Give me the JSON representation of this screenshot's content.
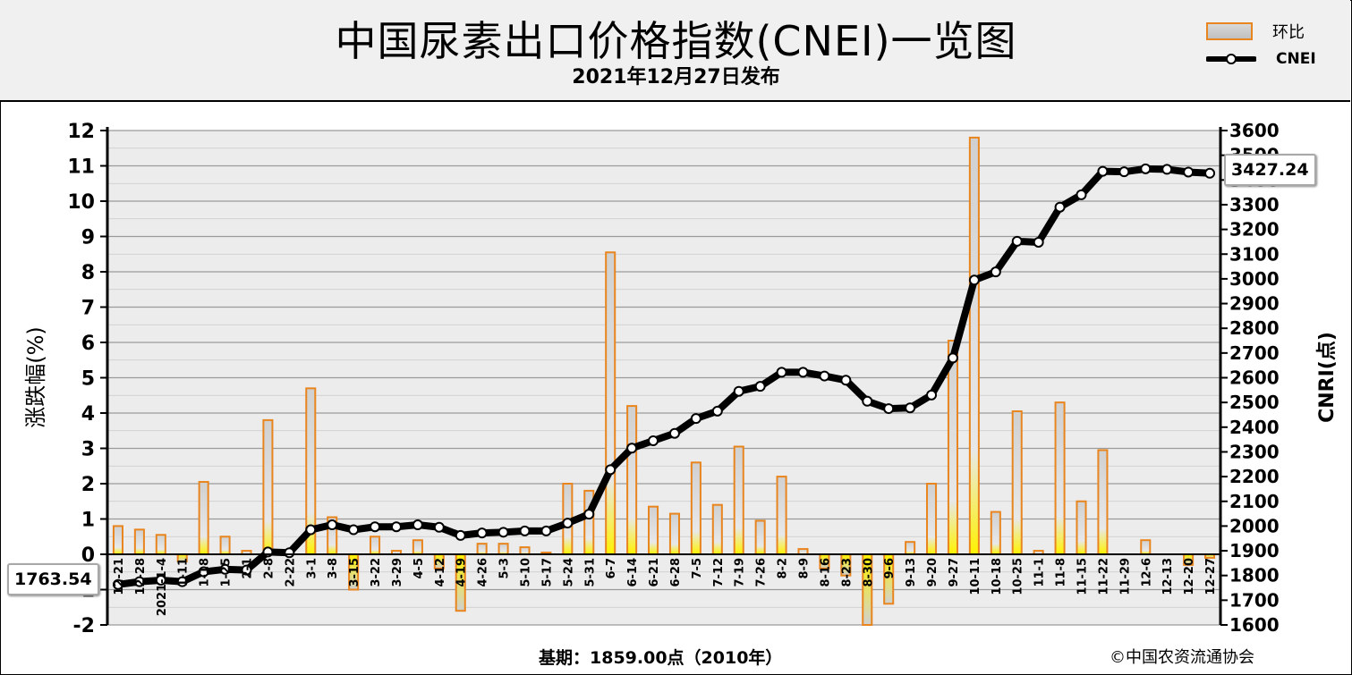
{
  "title": "中国尿素出口价格指数(CNEI)一览图",
  "subtitle": "2021年12月27日发布",
  "legend": {
    "bar_label": "环比",
    "line_label": "CNEI"
  },
  "footer": {
    "base_text": "基期：1859.00点（2010年）",
    "copyright": "©中国农资流通协会"
  },
  "callouts": {
    "start_value": "1763.54",
    "end_value": "3427.24"
  },
  "colors": {
    "bar_border": "#e8851e",
    "bar_fill_top": "#d8d8d8",
    "bar_fill_bottom": "#ffe600",
    "line": "#000000",
    "marker_fill": "#ffffff",
    "plot_bg": "#ececec",
    "grid": "#b8b8b8"
  },
  "chart_data": {
    "type": "bar",
    "combo": "bar + line (dual axis)",
    "ylabel_left": "涨跌幅(%)",
    "ylabel_right": "CNRI(点)",
    "ylim_left": [
      -2,
      12
    ],
    "ylim_right": [
      1600,
      3600
    ],
    "yticks_left": [
      -2,
      -1,
      0,
      1,
      2,
      3,
      4,
      5,
      6,
      7,
      8,
      9,
      10,
      11,
      12
    ],
    "yticks_right": [
      1600,
      1700,
      1800,
      1900,
      2000,
      2100,
      2200,
      2300,
      2400,
      2500,
      2600,
      2700,
      2800,
      2900,
      3000,
      3100,
      3200,
      3300,
      3400,
      3500,
      3600
    ],
    "grid": true,
    "legend_position": "top-right",
    "categories": [
      "12-21",
      "12-28",
      "2021-1-4",
      "1-11",
      "1-18",
      "1-25",
      "2-1",
      "2-8",
      "2-22",
      "3-1",
      "3-8",
      "3-15",
      "3-22",
      "3-29",
      "4-5",
      "4-12",
      "4-19",
      "4-26",
      "5-3",
      "5-10",
      "5-17",
      "5-24",
      "5-31",
      "6-7",
      "6-14",
      "6-21",
      "6-28",
      "7-5",
      "7-12",
      "7-19",
      "7-26",
      "8-2",
      "8-9",
      "8-16",
      "8-23",
      "8-30",
      "9-6",
      "9-13",
      "9-20",
      "9-27",
      "10-11",
      "10-18",
      "10-25",
      "11-1",
      "11-8",
      "11-15",
      "11-22",
      "11-29",
      "12-6",
      "12-13",
      "12-20",
      "12-27"
    ],
    "x_tick_labels": [
      "12-21",
      "12-28",
      "2021-1-4",
      "1-11",
      "1-18",
      "1-25",
      "2-1",
      "2-8",
      "2-22",
      "3-1",
      "3-8",
      "3-15",
      "3-22",
      "3-29",
      "4-5",
      "4-12",
      "4-19",
      "4-26",
      "5-3",
      "5-10",
      "5-17",
      "5-24",
      "5-31",
      "6-7",
      "6-14",
      "6-21",
      "6-28",
      "7-5",
      "7-12",
      "7-19",
      "7-26",
      "8-2",
      "8-9",
      "8-16",
      "8-23",
      "8-30",
      "9-6",
      "9-13",
      "9-20",
      "9-27",
      "10-11",
      "10-18",
      "10-25",
      "11-1",
      "11-8",
      "11-15",
      "11-22",
      "11-29",
      "12-6",
      "12-13",
      "12-20",
      "12-27"
    ],
    "series": [
      {
        "name": "环比",
        "kind": "bar",
        "axis": "left",
        "values": [
          0.8,
          0.7,
          0.55,
          -0.2,
          2.05,
          0.5,
          0.1,
          3.8,
          0.0,
          4.7,
          1.05,
          -1.0,
          0.5,
          0.1,
          0.4,
          -0.4,
          -1.6,
          0.3,
          0.3,
          0.2,
          0.05,
          2.0,
          1.8,
          8.55,
          4.2,
          1.35,
          1.15,
          2.6,
          1.4,
          3.05,
          0.95,
          2.2,
          0.15,
          -0.4,
          -0.6,
          -2.0,
          -1.4,
          0.35,
          2.0,
          6.05,
          11.8,
          1.2,
          4.05,
          0.1,
          4.3,
          1.5,
          2.95,
          0.0,
          0.4,
          0.0,
          -0.3,
          -0.1
        ]
      },
      {
        "name": "CNEI",
        "kind": "line",
        "axis": "right",
        "values": [
          1763.54,
          1775,
          1781,
          1775,
          1815,
          1825,
          1822,
          1895,
          1892,
          1985,
          2005,
          1985,
          1997,
          1997,
          2005,
          1995,
          1962,
          1972,
          1975,
          1980,
          1980,
          2012,
          2048,
          2228,
          2315,
          2345,
          2375,
          2435,
          2465,
          2545,
          2565,
          2622,
          2622,
          2607,
          2590,
          2505,
          2475,
          2478,
          2530,
          2680,
          2995,
          3028,
          3152,
          3148,
          3290,
          3340,
          3435,
          3433,
          3445,
          3443,
          3432,
          3427.24
        ]
      }
    ]
  }
}
